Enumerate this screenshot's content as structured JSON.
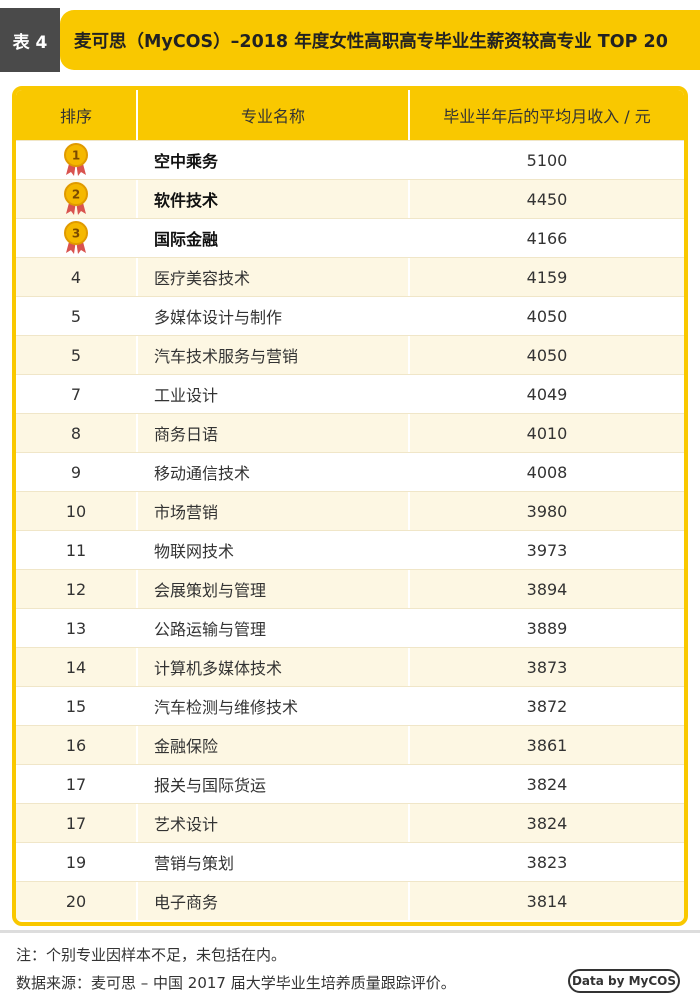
{
  "header": {
    "tag": "表 4",
    "title": "麦可思（MyCOS）–2018 年度女性高职高专毕业生薪资较高专业 TOP 20"
  },
  "table": {
    "columns": [
      "排序",
      "专业名称",
      "毕业半年后的平均月收入 / 元"
    ],
    "rows": [
      [
        "1",
        "空中乘务",
        "5100"
      ],
      [
        "2",
        "软件技术",
        "4450"
      ],
      [
        "3",
        "国际金融",
        "4166"
      ],
      [
        "4",
        "医疗美容技术",
        "4159"
      ],
      [
        "5",
        "多媒体设计与制作",
        "4050"
      ],
      [
        "5",
        "汽车技术服务与营销",
        "4050"
      ],
      [
        "7",
        "工业设计",
        "4049"
      ],
      [
        "8",
        "商务日语",
        "4010"
      ],
      [
        "9",
        "移动通信技术",
        "4008"
      ],
      [
        "10",
        "市场营销",
        "3980"
      ],
      [
        "11",
        "物联网技术",
        "3973"
      ],
      [
        "12",
        "会展策划与管理",
        "3894"
      ],
      [
        "13",
        "公路运输与管理",
        "3889"
      ],
      [
        "14",
        "计算机多媒体技术",
        "3873"
      ],
      [
        "15",
        "汽车检测与维修技术",
        "3872"
      ],
      [
        "16",
        "金融保险",
        "3861"
      ],
      [
        "17",
        "报关与国际货运",
        "3824"
      ],
      [
        "17",
        "艺术设计",
        "3824"
      ],
      [
        "19",
        "营销与策划",
        "3823"
      ],
      [
        "20",
        "电子商务",
        "3814"
      ]
    ]
  },
  "footer": {
    "note": "注：个别专业因样本不足，未包括在内。",
    "source": "数据来源：麦可思 – 中国 2017 届大学毕业生培养质量跟踪评价。",
    "badge": "Data by MyCOS"
  }
}
